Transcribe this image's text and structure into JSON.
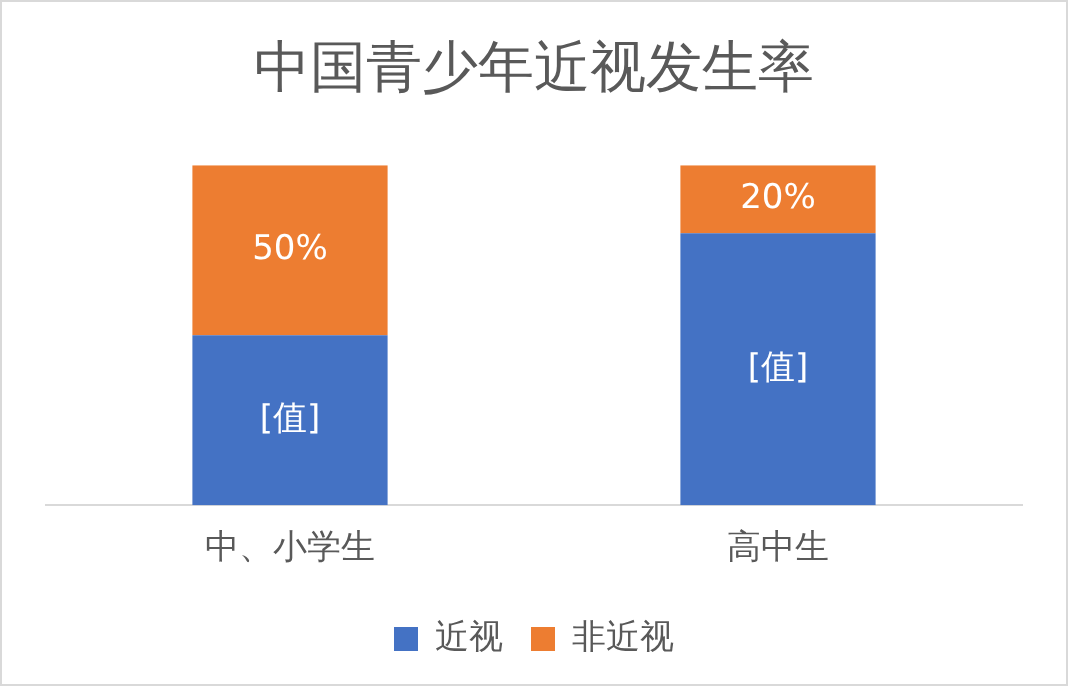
{
  "chart_data": {
    "type": "bar",
    "title": "中国青少年近视发生率",
    "categories": [
      "中、小学生",
      "高中生"
    ],
    "stacked": true,
    "ylim": [
      0,
      100
    ],
    "tick_labels": "x",
    "legend": "bottom",
    "series": [
      {
        "name": "近视",
        "color": "#4472c4",
        "values": [
          50,
          80
        ],
        "value_labels": [
          "[值]",
          "[值]"
        ]
      },
      {
        "name": "非近视",
        "color": "#ed7d31",
        "values": [
          50,
          20
        ],
        "value_labels": [
          "50%",
          "20%"
        ]
      }
    ]
  }
}
